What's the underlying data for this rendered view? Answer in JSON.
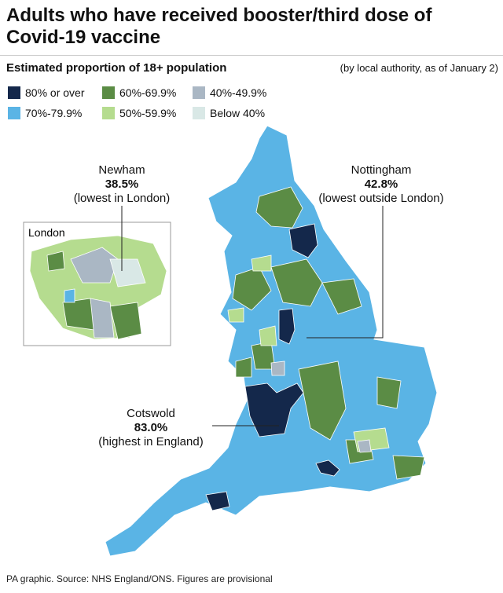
{
  "header": {
    "title": "Adults who have received booster/third dose of Covid-19 vaccine",
    "subtitle": "Estimated proportion of 18+ population",
    "note": "(by local authority, as of January 2)"
  },
  "legend": [
    {
      "label": "80% or over",
      "color": "#14284b"
    },
    {
      "label": "70%-79.9%",
      "color": "#5ab4e5"
    },
    {
      "label": "60%-69.9%",
      "color": "#5b8c45"
    },
    {
      "label": "50%-59.9%",
      "color": "#b5dc8f"
    },
    {
      "label": "40%-49.9%",
      "color": "#aab7c4"
    },
    {
      "label": "Below 40%",
      "color": "#d9e8e6"
    }
  ],
  "inset": {
    "label": "London"
  },
  "annotations": [
    {
      "name": "Newham",
      "value": "38.5%",
      "note": "(lowest in London)"
    },
    {
      "name": "Nottingham",
      "value": "42.8%",
      "note": "(lowest outside London)"
    },
    {
      "name": "Cotswold",
      "value": "83.0%",
      "note": "(highest in England)"
    }
  ],
  "footer": "PA graphic. Source: NHS England/ONS. Figures are provisional"
}
